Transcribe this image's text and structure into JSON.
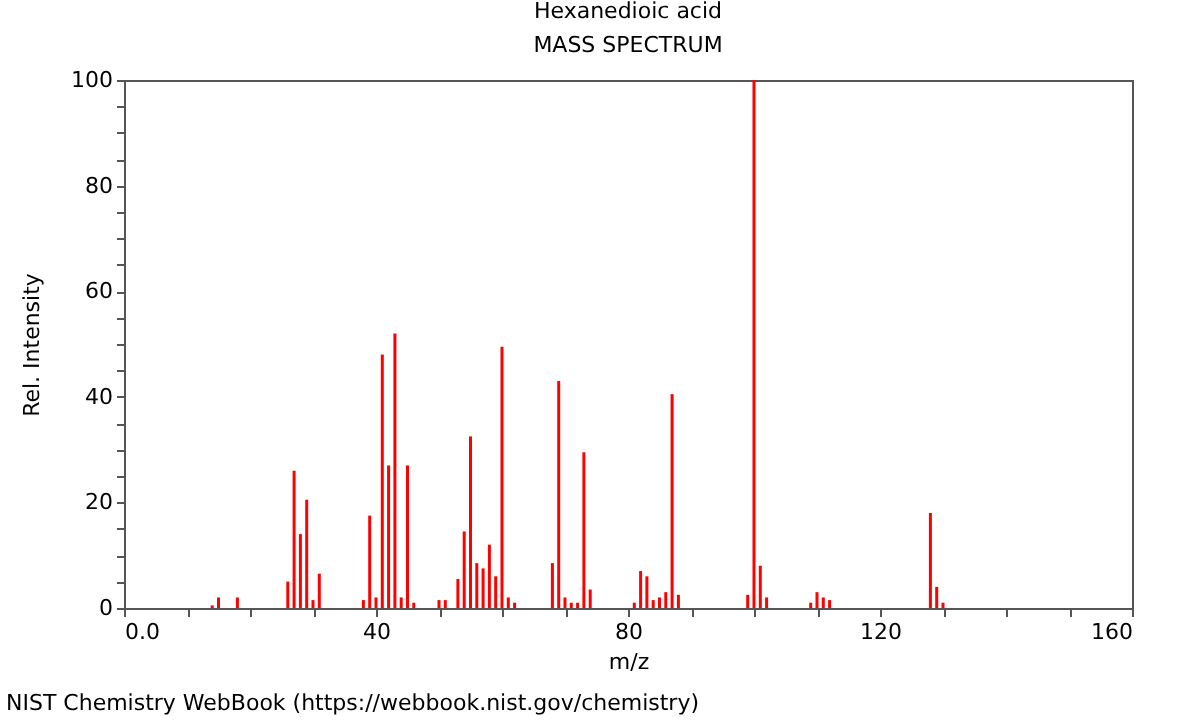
{
  "chart_data": {
    "type": "bar",
    "title": "Hexanedioic acid",
    "subtitle": "MASS SPECTRUM",
    "xlabel": "m/z",
    "ylabel": "Rel. Intensity",
    "annotations": [
      "NIST Chemistry WebBook (https://webbook.nist.gov/chemistry)"
    ],
    "x": [
      14,
      15,
      18,
      26,
      27,
      28,
      29,
      30,
      31,
      38,
      39,
      40,
      41,
      42,
      43,
      44,
      45,
      46,
      50,
      51,
      53,
      54,
      55,
      56,
      57,
      58,
      59,
      60,
      61,
      62,
      68,
      69,
      70,
      71,
      72,
      73,
      74,
      81,
      82,
      83,
      84,
      85,
      86,
      87,
      88,
      99,
      100,
      101,
      102,
      109,
      110,
      111,
      112,
      128,
      129,
      130
    ],
    "values": [
      0.5,
      2,
      2,
      5,
      26,
      14,
      20.5,
      1.5,
      6.5,
      1.5,
      17.5,
      2,
      48,
      27,
      52,
      2,
      27,
      1,
      1.5,
      1.5,
      5.5,
      14.5,
      32.5,
      8.5,
      7.5,
      12,
      6,
      49.5,
      2,
      1,
      8.5,
      43,
      2,
      1,
      1,
      29.5,
      3.5,
      1,
      7,
      6,
      1.5,
      2,
      3,
      40.5,
      2.5,
      2.5,
      100,
      8,
      2,
      1,
      3,
      2,
      1.5,
      18,
      4,
      1
    ],
    "color": "#ff0000",
    "xlim": [
      0,
      160
    ],
    "xticks": [
      {
        "value": 0,
        "label": "0.0"
      },
      {
        "value": 10,
        "label": null
      },
      {
        "value": 20,
        "label": null
      },
      {
        "value": 30,
        "label": null
      },
      40,
      {
        "value": 50,
        "label": null
      },
      {
        "value": 60,
        "label": null
      },
      {
        "value": 70,
        "label": null
      },
      80,
      {
        "value": 90,
        "label": null
      },
      {
        "value": 100,
        "label": null
      },
      {
        "value": 110,
        "label": null
      },
      120,
      {
        "value": 130,
        "label": null
      },
      {
        "value": 140,
        "label": null
      },
      {
        "value": 150,
        "label": null
      },
      160
    ],
    "ylim": [
      0,
      100
    ],
    "yticks": [
      0,
      {
        "value": 5,
        "label": null
      },
      {
        "value": 10,
        "label": null
      },
      {
        "value": 15,
        "label": null
      },
      20,
      {
        "value": 25,
        "label": null
      },
      {
        "value": 30,
        "label": null
      },
      {
        "value": 35,
        "label": null
      },
      40,
      {
        "value": 45,
        "label": null
      },
      {
        "value": 50,
        "label": null
      },
      {
        "value": 55,
        "label": null
      },
      60,
      {
        "value": 65,
        "label": null
      },
      {
        "value": 70,
        "label": null
      },
      {
        "value": 75,
        "label": null
      },
      80,
      {
        "value": 85,
        "label": null
      },
      {
        "value": 90,
        "label": null
      },
      {
        "value": 95,
        "label": null
      },
      100
    ],
    "grid": false,
    "legend": false
  }
}
